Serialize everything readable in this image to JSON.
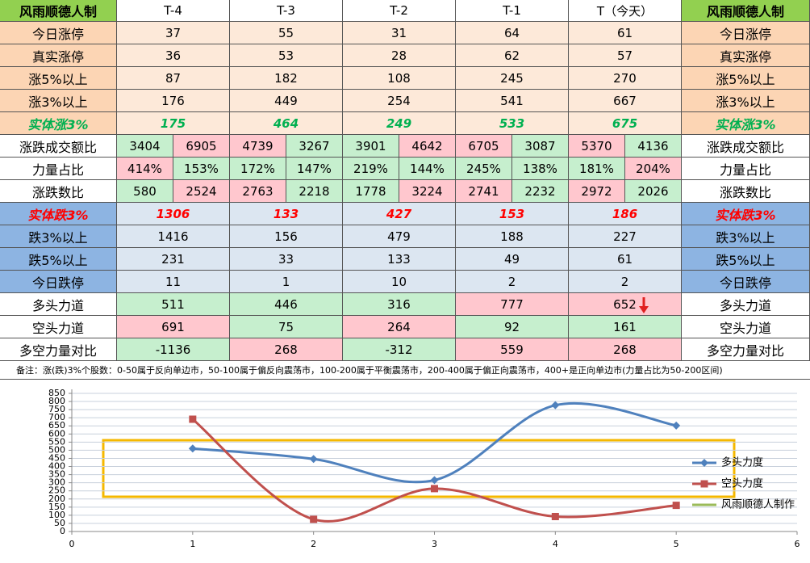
{
  "table": {
    "header": [
      "风雨顺德人制",
      "T-4",
      "T-3",
      "T-2",
      "T-1",
      "T（今天）",
      "风雨顺德人制"
    ],
    "rows": [
      {
        "label": "今日涨停",
        "label_fill": "#fcd5b4",
        "fill": "#fde9d9",
        "cells": [
          37,
          55,
          31,
          64,
          61
        ]
      },
      {
        "label": "真实涨停",
        "label_fill": "#fcd5b4",
        "fill": "#fde9d9",
        "cells": [
          36,
          53,
          28,
          62,
          57
        ]
      },
      {
        "label": "涨5%以上",
        "label_fill": "#fcd5b4",
        "fill": "#fde9d9",
        "cells": [
          87,
          182,
          108,
          245,
          270
        ]
      },
      {
        "label": "涨3%以上",
        "label_fill": "#fcd5b4",
        "fill": "#fde9d9",
        "cells": [
          176,
          449,
          254,
          541,
          667
        ]
      },
      {
        "label": "实体涨3%",
        "label_fill": "#fcd5b4",
        "fill": "#fde9d9",
        "text_color": "#00b050",
        "emphasis": true,
        "cells": [
          175,
          464,
          249,
          533,
          675
        ]
      },
      {
        "label": "涨跌成交额比",
        "label_fill": "#ffffff",
        "cells": [
          [
            3404,
            6905
          ],
          [
            4739,
            3267
          ],
          [
            3901,
            4642
          ],
          [
            6705,
            3087
          ],
          [
            5370,
            4136
          ]
        ],
        "fills": [
          "#c6efce",
          "#ffc7ce",
          "#ffc7ce",
          "#c6efce",
          "#c6efce",
          "#ffc7ce",
          "#ffc7ce",
          "#c6efce",
          "#ffc7ce",
          "#c6efce"
        ]
      },
      {
        "label": "力量占比",
        "label_fill": "#ffffff",
        "cells": [
          [
            "414%",
            "153%"
          ],
          [
            "172%",
            "147%"
          ],
          [
            "219%",
            "144%"
          ],
          [
            "245%",
            "138%"
          ],
          [
            "181%",
            "204%"
          ]
        ],
        "fills": [
          "#ffc7ce",
          "#c6efce",
          "#c6efce",
          "#c6efce",
          "#c6efce",
          "#c6efce",
          "#c6efce",
          "#c6efce",
          "#c6efce",
          "#ffc7ce"
        ]
      },
      {
        "label": "涨跌数比",
        "label_fill": "#ffffff",
        "cells": [
          [
            580,
            2524
          ],
          [
            2763,
            2218
          ],
          [
            1778,
            3224
          ],
          [
            2741,
            2232
          ],
          [
            2972,
            2026
          ]
        ],
        "fills": [
          "#c6efce",
          "#ffc7ce",
          "#ffc7ce",
          "#c6efce",
          "#c6efce",
          "#ffc7ce",
          "#ffc7ce",
          "#c6efce",
          "#ffc7ce",
          "#c6efce"
        ]
      },
      {
        "label": "实体跌3%",
        "label_fill": "#8db4e2",
        "fill": "#dce6f1",
        "text_color": "#ff0000",
        "emphasis": true,
        "cells": [
          1306,
          133,
          427,
          153,
          186
        ]
      },
      {
        "label": "跌3%以上",
        "label_fill": "#8db4e2",
        "fill": "#dce6f1",
        "cells": [
          1416,
          156,
          479,
          188,
          227
        ]
      },
      {
        "label": "跌5%以上",
        "label_fill": "#8db4e2",
        "fill": "#dce6f1",
        "cells": [
          231,
          33,
          133,
          49,
          61
        ]
      },
      {
        "label": "今日跌停",
        "label_fill": "#8db4e2",
        "fill": "#dce6f1",
        "cells": [
          11,
          1,
          10,
          2,
          2
        ]
      },
      {
        "label": "多头力道",
        "label_fill": "#ffffff",
        "cells": [
          511,
          446,
          316,
          777,
          652
        ],
        "fills": [
          "#c6efce",
          "#c6efce",
          "#c6efce",
          "#ffc7ce",
          "#ffc7ce"
        ]
      },
      {
        "label": "空头力道",
        "label_fill": "#ffffff",
        "cells": [
          691,
          75,
          264,
          92,
          161
        ],
        "fills": [
          "#ffc7ce",
          "#c6efce",
          "#ffc7ce",
          "#c6efce",
          "#c6efce"
        ]
      },
      {
        "label": "多空力量对比",
        "label_fill": "#ffffff",
        "cells": [
          -1136,
          268,
          -312,
          559,
          268
        ],
        "fills": [
          "#c6efce",
          "#ffc7ce",
          "#c6efce",
          "#ffc7ce",
          "#ffc7ce"
        ]
      }
    ],
    "note": "备注：涨(跌)3%个股数：0-50属于反向单边市，50-100属于偏反向震荡市，100-200属于平衡震荡市，200-400属于偏正向震荡市，400+是正向单边市(力量占比为50-200区间)"
  },
  "chart_data": {
    "type": "line",
    "smooth": true,
    "x": [
      1,
      2,
      3,
      4,
      5
    ],
    "series": [
      {
        "name": "多头力度",
        "color": "#4f81bd",
        "marker": "diamond",
        "values": [
          511,
          446,
          316,
          777,
          652
        ]
      },
      {
        "name": "空头力度",
        "color": "#c0504d",
        "marker": "square",
        "values": [
          691,
          75,
          264,
          92,
          161
        ]
      },
      {
        "name": "风雨顺德人制作",
        "color": "#9bbb59"
      }
    ],
    "xlim": [
      0,
      6
    ],
    "xticks": [
      0,
      1,
      2,
      3,
      4,
      5,
      6
    ],
    "ylim": [
      0,
      850
    ],
    "yticks": [
      0,
      50,
      100,
      150,
      200,
      250,
      300,
      350,
      400,
      450,
      500,
      550,
      600,
      650,
      700,
      750,
      800,
      850
    ],
    "grid": true
  }
}
